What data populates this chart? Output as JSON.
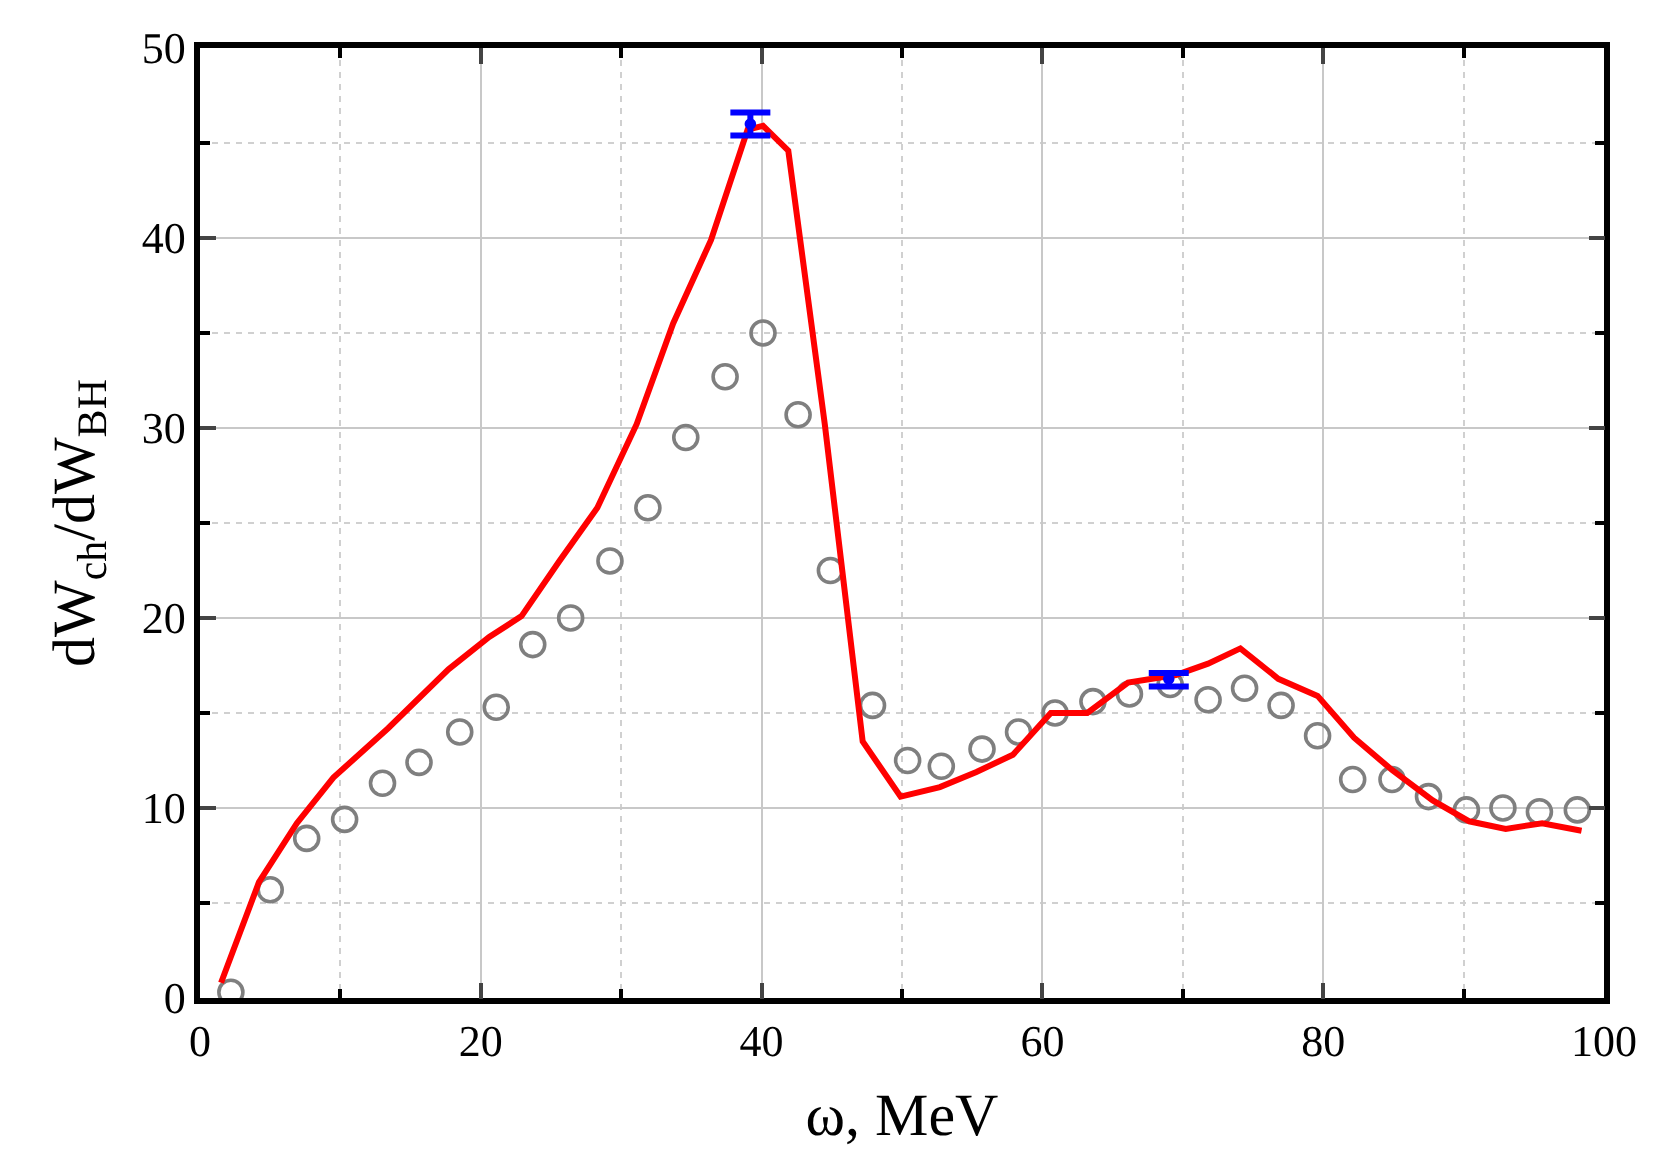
{
  "chart_data": {
    "type": "line",
    "xlabel": "ω, MeV",
    "ylabel": "dW$_{ch}$/dW$_{BH}$",
    "xlim": [
      0,
      100
    ],
    "ylim": [
      0,
      50
    ],
    "xticks": [
      0,
      {
        "value": 10,
        "label": null
      },
      20,
      {
        "value": 30,
        "label": null
      },
      40,
      {
        "value": 50,
        "label": null
      },
      60,
      {
        "value": 70,
        "label": null
      },
      80,
      {
        "value": 90,
        "label": null
      },
      100
    ],
    "yticks": [
      0,
      {
        "value": 5,
        "label": null
      },
      10,
      {
        "value": 15,
        "label": null
      },
      20,
      {
        "value": 25,
        "label": null
      },
      30,
      {
        "value": 35,
        "label": null
      },
      40,
      {
        "value": 45,
        "label": null
      },
      50
    ],
    "grid": true,
    "series": [
      {
        "type": "scatter",
        "marker": "circle",
        "color": "#7f7f7f",
        "x": [
          2.2,
          5.0,
          7.6,
          10.3,
          13.0,
          15.6,
          18.5,
          21.1,
          23.7,
          26.4,
          29.2,
          31.9,
          34.6,
          37.4,
          40.1,
          42.6,
          44.9,
          47.9,
          50.4,
          52.8,
          55.7,
          58.3,
          60.9,
          63.6,
          66.2,
          69.1,
          71.8,
          74.4,
          77.0,
          79.6,
          82.1,
          84.9,
          87.5,
          90.2,
          92.8,
          95.4,
          98.1
        ],
        "values": [
          0.3,
          5.7,
          8.4,
          9.4,
          11.3,
          12.4,
          14.0,
          15.3,
          18.6,
          20.0,
          23.0,
          25.8,
          29.5,
          32.7,
          35.0,
          30.7,
          22.5,
          15.4,
          12.5,
          12.2,
          13.1,
          14.0,
          15.0,
          15.6,
          16.0,
          16.5,
          15.7,
          16.3,
          15.4,
          13.8,
          11.5,
          11.5,
          10.6,
          9.9,
          10.0,
          9.8,
          9.9
        ]
      },
      {
        "marker": "none",
        "color": "#ff0000",
        "x": [
          1.5,
          4.2,
          6.9,
          9.5,
          13.4,
          17.7,
          20.6,
          22.9,
          25.6,
          28.3,
          31.1,
          33.7,
          36.4,
          39.0,
          40.1,
          41.9,
          44.5,
          47.2,
          49.9,
          52.7,
          55.3,
          57.9,
          60.6,
          63.2,
          66.1,
          69.5,
          71.8,
          74.1,
          76.8,
          79.6,
          82.2,
          84.9,
          87.8,
          90.4,
          93.0,
          95.6,
          98.4
        ],
        "values": [
          0.8,
          6.1,
          9.2,
          11.6,
          14.2,
          17.3,
          19.0,
          20.1,
          23.0,
          25.8,
          30.2,
          35.5,
          39.9,
          45.7,
          45.9,
          44.6,
          30.2,
          13.5,
          10.6,
          11.1,
          11.9,
          12.8,
          15.0,
          15.0,
          16.6,
          17.0,
          17.6,
          18.4,
          16.8,
          15.9,
          13.7,
          12.0,
          10.4,
          9.3,
          8.9,
          9.2,
          8.8
        ]
      },
      {
        "type": "scatter",
        "marker": "circle",
        "color": "#0000ff",
        "x": [
          39.2,
          69.0
        ],
        "values": [
          46.0,
          16.8
        ],
        "errors": [
          [
            45.4,
            46.6
          ],
          [
            16.4,
            17.1
          ]
        ]
      }
    ]
  }
}
